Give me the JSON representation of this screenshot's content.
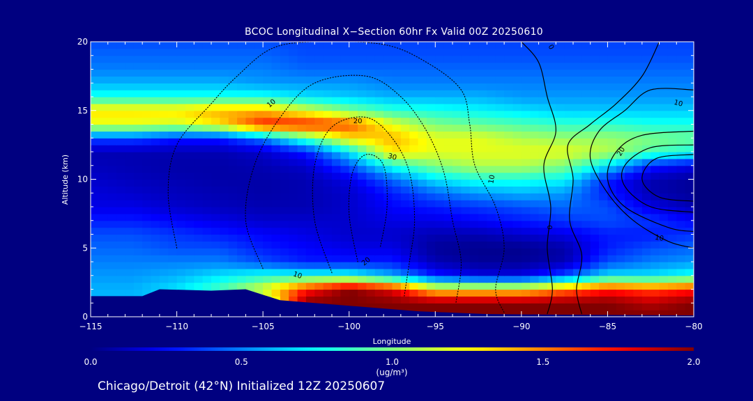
{
  "chart_data": {
    "type": "heatmap",
    "title": "BCOC Longitudinal X−Section 60hr  Fx Valid 00Z 20250610",
    "xlabel": "Longitude",
    "ylabel": "Altitude (km)",
    "xlim": [
      -115,
      -80
    ],
    "ylim": [
      0,
      20
    ],
    "x_ticks": [
      {
        "value": -115,
        "label": "−115"
      },
      {
        "value": -110,
        "label": "−110"
      },
      {
        "value": -105,
        "label": "−105"
      },
      {
        "value": -100,
        "label": "−100"
      },
      {
        "value": -95,
        "label": "−95"
      },
      {
        "value": -90,
        "label": "−90"
      },
      {
        "value": -85,
        "label": "−85"
      },
      {
        "value": -80,
        "label": "−80"
      }
    ],
    "y_ticks": [
      {
        "value": 0,
        "label": "0"
      },
      {
        "value": 5,
        "label": "5"
      },
      {
        "value": 10,
        "label": "10"
      },
      {
        "value": 15,
        "label": "15"
      },
      {
        "value": 20,
        "label": "20"
      }
    ],
    "colorbar": {
      "range": [
        0.0,
        2.0
      ],
      "ticks": [
        {
          "value": 0.0,
          "label": "0.0"
        },
        {
          "value": 0.5,
          "label": "0.5"
        },
        {
          "value": 1.0,
          "label": "1.0"
        },
        {
          "value": 1.5,
          "label": "1.5"
        },
        {
          "value": 2.0,
          "label": "2.0"
        }
      ],
      "units": "(ug/m³)",
      "colormap": "jet"
    },
    "field": {
      "x_nodes": [
        -115,
        -112.5,
        -110,
        -107.5,
        -105,
        -102.5,
        -100,
        -97.5,
        -95,
        -92.5,
        -90,
        -87.5,
        -85,
        -82.5,
        -80
      ],
      "y_nodes": [
        0,
        1,
        2,
        3,
        4,
        5,
        6,
        7,
        8,
        9,
        10,
        11,
        12,
        13,
        14,
        15,
        16,
        17,
        18,
        19,
        20
      ],
      "values": [
        [
          0.6,
          0.6,
          0.6,
          0.6,
          0.8,
          2.0,
          2.0,
          2.0,
          2.0,
          2.0,
          2.0,
          2.0,
          2.0,
          2.0,
          2.0
        ],
        [
          0.6,
          0.6,
          0.65,
          0.7,
          0.9,
          2.0,
          2.0,
          2.0,
          2.0,
          2.0,
          2.0,
          2.0,
          2.0,
          1.9,
          2.0
        ],
        [
          0.6,
          0.6,
          0.7,
          0.9,
          1.2,
          1.7,
          2.0,
          1.8,
          1.3,
          1.3,
          1.3,
          1.5,
          1.7,
          1.6,
          1.7
        ],
        [
          0.55,
          0.55,
          0.6,
          0.7,
          0.8,
          0.8,
          0.8,
          0.6,
          0.3,
          0.2,
          0.2,
          0.4,
          0.7,
          0.7,
          0.8
        ],
        [
          0.5,
          0.5,
          0.5,
          0.5,
          0.4,
          0.3,
          0.3,
          0.3,
          0.1,
          0.05,
          0.05,
          0.1,
          0.4,
          0.5,
          0.55
        ],
        [
          0.45,
          0.45,
          0.4,
          0.4,
          0.3,
          0.25,
          0.2,
          0.2,
          0.05,
          0.03,
          0.03,
          0.08,
          0.3,
          0.4,
          0.45
        ],
        [
          0.4,
          0.4,
          0.35,
          0.3,
          0.25,
          0.2,
          0.15,
          0.15,
          0.1,
          0.1,
          0.15,
          0.2,
          0.3,
          0.3,
          0.35
        ],
        [
          0.3,
          0.3,
          0.25,
          0.2,
          0.15,
          0.15,
          0.15,
          0.2,
          0.2,
          0.25,
          0.3,
          0.35,
          0.4,
          0.35,
          0.25
        ],
        [
          0.2,
          0.2,
          0.15,
          0.12,
          0.1,
          0.1,
          0.15,
          0.25,
          0.3,
          0.35,
          0.4,
          0.45,
          0.4,
          0.2,
          0.1
        ],
        [
          0.18,
          0.15,
          0.12,
          0.1,
          0.08,
          0.1,
          0.15,
          0.3,
          0.45,
          0.55,
          0.6,
          0.55,
          0.3,
          0.1,
          0.05
        ],
        [
          0.15,
          0.12,
          0.1,
          0.08,
          0.08,
          0.1,
          0.2,
          0.45,
          0.7,
          0.8,
          0.8,
          0.75,
          0.3,
          0.1,
          0.05
        ],
        [
          0.12,
          0.1,
          0.08,
          0.08,
          0.1,
          0.15,
          0.4,
          0.8,
          1.0,
          1.1,
          1.1,
          1.0,
          0.7,
          0.3,
          0.2
        ],
        [
          0.1,
          0.1,
          0.1,
          0.1,
          0.15,
          0.3,
          0.7,
          1.3,
          1.2,
          1.2,
          1.2,
          1.2,
          1.1,
          0.9,
          0.8
        ],
        [
          0.4,
          0.4,
          0.3,
          0.3,
          0.5,
          0.9,
          1.3,
          1.4,
          1.2,
          1.2,
          1.1,
          1.05,
          1.05,
          1.0,
          0.95
        ],
        [
          1.2,
          1.2,
          1.15,
          1.3,
          1.7,
          1.7,
          1.6,
          1.2,
          1.0,
          0.95,
          0.9,
          0.85,
          0.85,
          0.8,
          0.8
        ],
        [
          1.3,
          1.3,
          1.3,
          1.4,
          1.4,
          1.2,
          1.0,
          0.85,
          0.8,
          0.75,
          0.7,
          0.65,
          0.65,
          0.65,
          0.65
        ],
        [
          0.8,
          0.8,
          0.8,
          0.8,
          0.8,
          0.7,
          0.65,
          0.6,
          0.6,
          0.6,
          0.55,
          0.55,
          0.55,
          0.55,
          0.55
        ],
        [
          0.6,
          0.6,
          0.6,
          0.6,
          0.55,
          0.55,
          0.55,
          0.5,
          0.5,
          0.5,
          0.5,
          0.5,
          0.5,
          0.5,
          0.5
        ],
        [
          0.5,
          0.5,
          0.5,
          0.5,
          0.5,
          0.45,
          0.45,
          0.45,
          0.45,
          0.45,
          0.45,
          0.45,
          0.45,
          0.45,
          0.45
        ],
        [
          0.45,
          0.45,
          0.45,
          0.45,
          0.45,
          0.4,
          0.4,
          0.4,
          0.4,
          0.4,
          0.4,
          0.4,
          0.4,
          0.4,
          0.4
        ],
        [
          0.4,
          0.4,
          0.4,
          0.4,
          0.4,
          0.38,
          0.38,
          0.38,
          0.38,
          0.38,
          0.38,
          0.38,
          0.38,
          0.38,
          0.38
        ]
      ]
    },
    "terrain": [
      {
        "x": -115,
        "y": 1.5
      },
      {
        "x": -112,
        "y": 1.5
      },
      {
        "x": -111,
        "y": 2.0
      },
      {
        "x": -108,
        "y": 1.9
      },
      {
        "x": -106,
        "y": 2.0
      },
      {
        "x": -104,
        "y": 1.2
      },
      {
        "x": -100,
        "y": 0.8
      },
      {
        "x": -96,
        "y": 0.4
      },
      {
        "x": -92,
        "y": 0.2
      },
      {
        "x": -88,
        "y": 0.15
      },
      {
        "x": -80,
        "y": 0.1
      }
    ],
    "contours": [
      {
        "style": "solid",
        "points": [
          {
            "x": -90,
            "y": 20
          },
          {
            "x": -89,
            "y": 18.5
          },
          {
            "x": -88.5,
            "y": 16
          },
          {
            "x": -88,
            "y": 13.5
          },
          {
            "x": -88.7,
            "y": 11
          },
          {
            "x": -88.3,
            "y": 8
          },
          {
            "x": -88.5,
            "y": 5
          },
          {
            "x": -88.2,
            "y": 2
          },
          {
            "x": -88.5,
            "y": 0.2
          }
        ]
      },
      {
        "style": "solid",
        "points": [
          {
            "x": -82,
            "y": 20
          },
          {
            "x": -83,
            "y": 17.5
          },
          {
            "x": -84.5,
            "y": 15.5
          },
          {
            "x": -86,
            "y": 14
          },
          {
            "x": -87.3,
            "y": 12.5
          },
          {
            "x": -87,
            "y": 10
          },
          {
            "x": -87.2,
            "y": 7
          },
          {
            "x": -86.5,
            "y": 4.5
          },
          {
            "x": -86.8,
            "y": 2
          },
          {
            "x": -86.5,
            "y": 0.2
          }
        ]
      },
      {
        "style": "solid",
        "points": [
          {
            "x": -80,
            "y": 16.5
          },
          {
            "x": -82.5,
            "y": 16.5
          },
          {
            "x": -84,
            "y": 15
          },
          {
            "x": -85.5,
            "y": 13.5
          },
          {
            "x": -86,
            "y": 11.5
          },
          {
            "x": -85,
            "y": 9
          },
          {
            "x": -83.5,
            "y": 7
          },
          {
            "x": -81.5,
            "y": 5.5
          },
          {
            "x": -80,
            "y": 5
          }
        ]
      },
      {
        "style": "solid",
        "points": [
          {
            "x": -80,
            "y": 13.5
          },
          {
            "x": -83,
            "y": 13.2
          },
          {
            "x": -84.5,
            "y": 12
          },
          {
            "x": -85,
            "y": 10
          },
          {
            "x": -84,
            "y": 8
          },
          {
            "x": -81.5,
            "y": 6.5
          },
          {
            "x": -80,
            "y": 6.2
          }
        ]
      },
      {
        "style": "solid",
        "points": [
          {
            "x": -80,
            "y": 12.5
          },
          {
            "x": -82.5,
            "y": 12.3
          },
          {
            "x": -84,
            "y": 11
          },
          {
            "x": -84,
            "y": 9.5
          },
          {
            "x": -82.5,
            "y": 8
          },
          {
            "x": -80,
            "y": 7.6
          }
        ]
      },
      {
        "style": "solid",
        "points": [
          {
            "x": -80,
            "y": 11.8
          },
          {
            "x": -82.2,
            "y": 11.5
          },
          {
            "x": -83,
            "y": 10
          },
          {
            "x": -82,
            "y": 8.7
          },
          {
            "x": -80,
            "y": 8.4
          }
        ]
      },
      {
        "style": "dotted",
        "points": [
          {
            "x": -110,
            "y": 5
          },
          {
            "x": -110.5,
            "y": 9
          },
          {
            "x": -110,
            "y": 12.5
          },
          {
            "x": -108,
            "y": 15.5
          },
          {
            "x": -106.5,
            "y": 17.5
          },
          {
            "x": -104.5,
            "y": 19.5
          },
          {
            "x": -102,
            "y": 20
          },
          {
            "x": -98,
            "y": 19.8
          },
          {
            "x": -95.5,
            "y": 18.5
          },
          {
            "x": -93.5,
            "y": 16.5
          },
          {
            "x": -93,
            "y": 14
          },
          {
            "x": -92.7,
            "y": 11
          },
          {
            "x": -91.5,
            "y": 8
          },
          {
            "x": -91,
            "y": 5
          },
          {
            "x": -91.5,
            "y": 2
          },
          {
            "x": -91,
            "y": 0.3
          }
        ]
      },
      {
        "style": "dotted",
        "points": [
          {
            "x": -105,
            "y": 3.5
          },
          {
            "x": -106,
            "y": 7
          },
          {
            "x": -105.5,
            "y": 11
          },
          {
            "x": -104,
            "y": 14.5
          },
          {
            "x": -102,
            "y": 17
          },
          {
            "x": -99,
            "y": 17.5
          },
          {
            "x": -97,
            "y": 16
          },
          {
            "x": -95.5,
            "y": 13.5
          },
          {
            "x": -94.5,
            "y": 10.5
          },
          {
            "x": -94,
            "y": 7
          },
          {
            "x": -93.5,
            "y": 4
          },
          {
            "x": -93.8,
            "y": 1
          }
        ]
      },
      {
        "style": "dotted",
        "points": [
          {
            "x": -101,
            "y": 3.2
          },
          {
            "x": -102,
            "y": 7
          },
          {
            "x": -102,
            "y": 11
          },
          {
            "x": -101,
            "y": 13.8
          },
          {
            "x": -99,
            "y": 14.5
          },
          {
            "x": -97.5,
            "y": 13
          },
          {
            "x": -96.5,
            "y": 10.5
          },
          {
            "x": -96.2,
            "y": 7
          },
          {
            "x": -96.5,
            "y": 4
          },
          {
            "x": -96.8,
            "y": 1.5
          }
        ]
      },
      {
        "style": "dotted",
        "points": [
          {
            "x": -99.5,
            "y": 4
          },
          {
            "x": -100,
            "y": 7.5
          },
          {
            "x": -99.8,
            "y": 10.5
          },
          {
            "x": -99,
            "y": 11.8
          },
          {
            "x": -98,
            "y": 11
          },
          {
            "x": -97.8,
            "y": 8
          },
          {
            "x": -98.2,
            "y": 5
          }
        ]
      }
    ],
    "contour_labels": [
      {
        "x": -88.3,
        "y": 19.6,
        "label": "0",
        "rotate": 60
      },
      {
        "x": -88.4,
        "y": 6.5,
        "label": "0",
        "rotate": 90
      },
      {
        "x": -84.2,
        "y": 12.0,
        "label": "20",
        "rotate": -60
      },
      {
        "x": -80.9,
        "y": 15.5,
        "label": "10",
        "rotate": 15
      },
      {
        "x": -82.0,
        "y": 5.7,
        "label": "10",
        "rotate": 10
      },
      {
        "x": -104.5,
        "y": 15.5,
        "label": "10",
        "rotate": -40
      },
      {
        "x": -99.5,
        "y": 14.2,
        "label": "20",
        "rotate": 0
      },
      {
        "x": -97.5,
        "y": 11.6,
        "label": "30",
        "rotate": 15
      },
      {
        "x": -91.7,
        "y": 10.0,
        "label": "10",
        "rotate": -80
      },
      {
        "x": -99.0,
        "y": 4.0,
        "label": "20",
        "rotate": -40
      },
      {
        "x": -103.0,
        "y": 3.0,
        "label": "10",
        "rotate": 20
      }
    ]
  },
  "footer": "Chicago/Detroit (42°N) Initialized 12Z 20250607"
}
